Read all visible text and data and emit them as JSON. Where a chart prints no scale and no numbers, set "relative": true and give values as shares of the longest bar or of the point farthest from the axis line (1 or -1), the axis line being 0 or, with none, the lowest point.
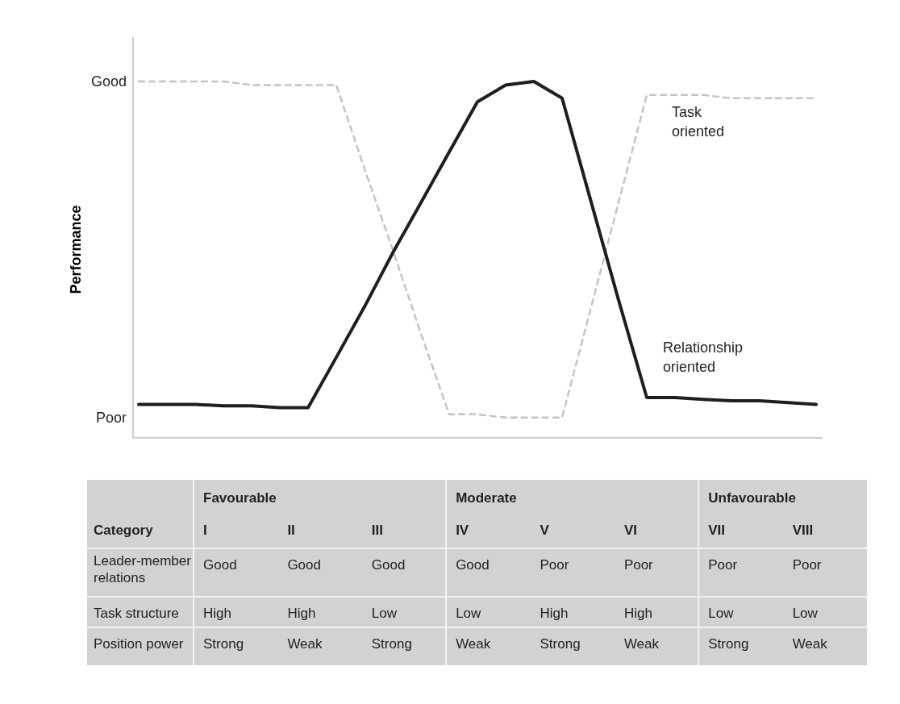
{
  "chart_data": {
    "type": "line",
    "ylabel": "Performance",
    "categories": [
      null,
      null,
      null,
      null,
      null,
      null,
      null,
      null,
      null,
      null,
      null,
      null,
      null,
      null,
      null,
      null,
      null,
      null,
      null,
      null,
      null,
      null,
      null,
      null,
      null
    ],
    "relative": true,
    "legend": false,
    "marker": "none",
    "series": [
      {
        "name": "Task oriented",
        "color": "#c4c4c4",
        "line_style": "dashed",
        "values": [
          1,
          1,
          1,
          1,
          0.99,
          0.99,
          0.99,
          0.99,
          0.755,
          0.528,
          0.292,
          0.066,
          0.066,
          0.057,
          0.057,
          0.057,
          0.358,
          0.66,
          0.962,
          0.962,
          0.962,
          0.953,
          0.953,
          0.953,
          0.953
        ]
      },
      {
        "name": "Relationship oriented",
        "color": "#1e1e1e",
        "line_style": "solid",
        "values": [
          0.094,
          0.094,
          0.094,
          0.09,
          0.09,
          0.085,
          0.085,
          0.226,
          0.368,
          0.519,
          0.66,
          0.802,
          0.943,
          0.99,
          1,
          0.953,
          0.67,
          0.387,
          0.113,
          0.113,
          0.108,
          0.104,
          0.104,
          0.099,
          0.094
        ]
      }
    ],
    "annotations": [
      "Favourable",
      "Moderate",
      "Unfavourable",
      "Category",
      "I",
      "II",
      "III",
      "IV",
      "V",
      "VI",
      "VII",
      "VIII",
      "Leader-member relations",
      "Good",
      "Good",
      "Good",
      "Good",
      "Poor",
      "Poor",
      "Poor",
      "Poor",
      "Task structure",
      "High",
      "High",
      "Low",
      "Low",
      "High",
      "High",
      "Low",
      "Low",
      "Position power",
      "Strong",
      "Weak",
      "Strong",
      "Weak",
      "Strong",
      "Weak",
      "Strong",
      "Weak",
      "Good",
      "Poor"
    ]
  }
}
